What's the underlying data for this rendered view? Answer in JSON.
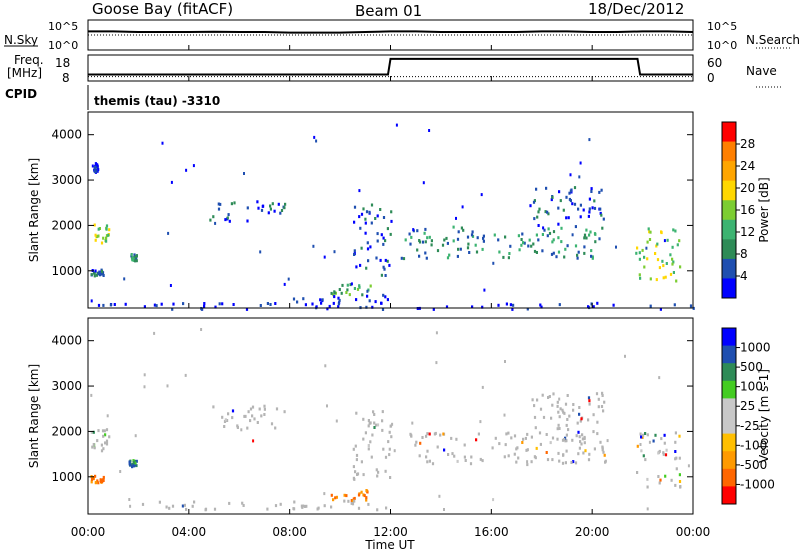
{
  "header": {
    "station": "Goose Bay (fitACF)",
    "beam": "Beam 01",
    "date": "18/Dec/2012"
  },
  "top_panels": {
    "nsky_label": "N.Sky",
    "nsearch_label": "N.Search",
    "noise_ticks": [
      "10^5",
      "10^0"
    ],
    "freq_label_1": "Freq.",
    "freq_label_2": "[MHz]",
    "freq_ticks": [
      "18",
      "8"
    ],
    "nave_label": "Nave",
    "nave_ticks": [
      "60",
      "0"
    ],
    "cpid_label": "CPID",
    "cpid_text": "themis (tau) -3310"
  },
  "colors": {
    "power_scale": [
      "#0000ff",
      "#1f4fb0",
      "#2e8b57",
      "#3cb371",
      "#7ccd32",
      "#ffd700",
      "#ffa500",
      "#ff7f00",
      "#ff0000"
    ],
    "velocity_scale": [
      "#ff0000",
      "#ff6600",
      "#ff9a00",
      "#ffbf00",
      "#c8c8c8",
      "#c8c8c8",
      "#44cc22",
      "#2e8b57",
      "#1f4fb0",
      "#0000ff"
    ],
    "ground_scatter": "#b4b4b4"
  },
  "chart_data": [
    {
      "type": "line",
      "panel": "noise",
      "series": [
        {
          "name": "N.Sky",
          "values": [
            0.62,
            0.62,
            0.6,
            0.6,
            0.6,
            0.61,
            0.6,
            0.6,
            0.58,
            0.58,
            0.58,
            0.6,
            0.62,
            0.62,
            0.6,
            0.6,
            0.6,
            0.6,
            0.62,
            0.62,
            0.6,
            0.6,
            0.62,
            0.62,
            0.6
          ]
        },
        {
          "name": "N.Search",
          "values": [
            0.5,
            0.5,
            0.5,
            0.5,
            0.5,
            0.5,
            0.5,
            0.5,
            0.5,
            0.5,
            0.5,
            0.5,
            0.5,
            0.5,
            0.5,
            0.5,
            0.5,
            0.5,
            0.5,
            0.5,
            0.5,
            0.5,
            0.5,
            0.5,
            0.5
          ]
        }
      ],
      "xlim": [
        0,
        24
      ]
    },
    {
      "type": "line",
      "panel": "frequency",
      "freq_steps": [
        [
          0,
          10.5
        ],
        [
          11.9,
          10.5
        ],
        [
          12.0,
          16.5
        ],
        [
          21.8,
          16.5
        ],
        [
          21.9,
          10.5
        ],
        [
          24,
          10.5
        ]
      ],
      "nave_level": 10,
      "ylim_freq": [
        8,
        18
      ],
      "ylim_nave": [
        0,
        60
      ],
      "xlim": [
        0,
        24
      ]
    },
    {
      "type": "heatmap",
      "panel": "power",
      "xlabel": "",
      "ylabel": "Slant Range [km]",
      "xlim": [
        0,
        24
      ],
      "ylim": [
        180,
        4500
      ],
      "yticks": [
        1000,
        2000,
        3000,
        4000
      ],
      "colorbar_label": "Power [dB]",
      "colorbar_ticks": [
        "28",
        "24",
        "20",
        "16",
        "12",
        "8",
        "4"
      ],
      "features": [
        {
          "t0": 0.1,
          "t1": 0.8,
          "r0": 1600,
          "r1": 2100,
          "level": 5
        },
        {
          "t0": 0.1,
          "t1": 0.6,
          "r0": 900,
          "r1": 1050,
          "level": 2
        },
        {
          "t0": 0.2,
          "t1": 0.4,
          "r0": 3200,
          "r1": 3400,
          "level": 1
        },
        {
          "t0": 1.6,
          "t1": 1.9,
          "r0": 1250,
          "r1": 1400,
          "level": 3
        },
        {
          "t0": 4.8,
          "t1": 7.8,
          "r0": 2100,
          "r1": 2600,
          "level": 2
        },
        {
          "t0": 9.6,
          "t1": 11.2,
          "r0": 500,
          "r1": 750,
          "level": 4
        },
        {
          "t0": 8.0,
          "t1": 12.0,
          "r0": 300,
          "r1": 500,
          "level": 1
        },
        {
          "t0": 10.5,
          "t1": 12.0,
          "r0": 900,
          "r1": 2500,
          "level": 2
        },
        {
          "t0": 12.4,
          "t1": 20.6,
          "r0": 1300,
          "r1": 2000,
          "level": 3
        },
        {
          "t0": 17.5,
          "t1": 20.5,
          "r0": 2000,
          "r1": 2900,
          "level": 2
        },
        {
          "t0": 21.7,
          "t1": 23.5,
          "r0": 800,
          "r1": 2000,
          "level": 5
        },
        {
          "t0": 0.0,
          "t1": 24.0,
          "r0": 180,
          "r1": 320,
          "level": 1
        }
      ]
    },
    {
      "type": "heatmap",
      "panel": "velocity",
      "xlabel": "Time UT",
      "ylabel": "Slant Range [km]",
      "xlim": [
        0,
        24
      ],
      "ylim": [
        180,
        4500
      ],
      "xticks": [
        "00:00",
        "04:00",
        "08:00",
        "12:00",
        "16:00",
        "20:00",
        "00:00"
      ],
      "yticks": [
        1000,
        2000,
        3000,
        4000
      ],
      "colorbar_label": "Velocity [m s-1]",
      "colorbar_ticks": [
        "1000",
        "500",
        "100",
        "25",
        "-25",
        "-100",
        "-500",
        "-1000"
      ],
      "features": [
        {
          "t0": 0.1,
          "t1": 0.8,
          "r0": 1600,
          "r1": 2100,
          "kind": "ground"
        },
        {
          "t0": 0.1,
          "t1": 0.6,
          "r0": 900,
          "r1": 1050,
          "kind": "neg"
        },
        {
          "t0": 1.6,
          "t1": 1.9,
          "r0": 1250,
          "r1": 1400,
          "kind": "pos"
        },
        {
          "t0": 4.8,
          "t1": 7.8,
          "r0": 2100,
          "r1": 2600,
          "kind": "ground"
        },
        {
          "t0": 9.6,
          "t1": 11.2,
          "r0": 500,
          "r1": 750,
          "kind": "neg"
        },
        {
          "t0": 2.0,
          "t1": 12.0,
          "r0": 300,
          "r1": 500,
          "kind": "ground"
        },
        {
          "t0": 10.5,
          "t1": 12.0,
          "r0": 900,
          "r1": 2500,
          "kind": "ground"
        },
        {
          "t0": 12.4,
          "t1": 20.6,
          "r0": 1300,
          "r1": 2000,
          "kind": "ground"
        },
        {
          "t0": 17.5,
          "t1": 20.5,
          "r0": 2000,
          "r1": 2900,
          "kind": "ground"
        },
        {
          "t0": 21.7,
          "t1": 23.5,
          "r0": 800,
          "r1": 2000,
          "kind": "mixed"
        }
      ]
    }
  ]
}
